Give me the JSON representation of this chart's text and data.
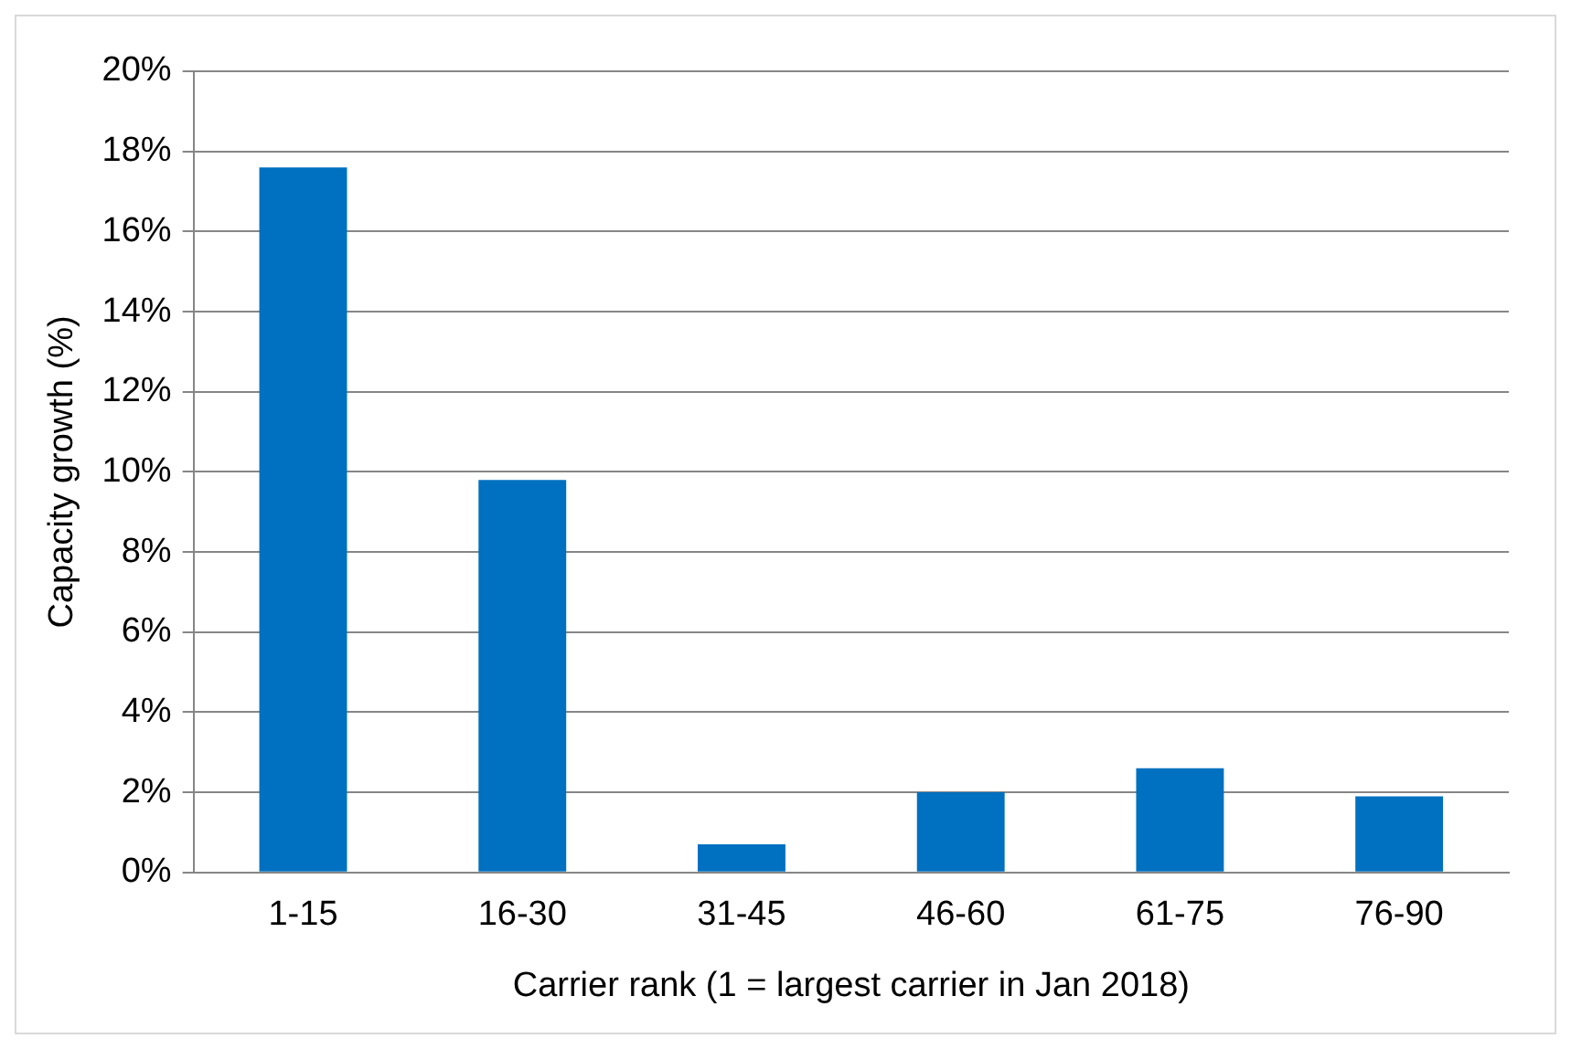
{
  "chart_data": {
    "type": "bar",
    "xlabel": "Carrier rank (1 = largest carrier in Jan 2018)",
    "ylabel": "Capacity growth (%)",
    "categories": [
      "1-15",
      "16-30",
      "31-45",
      "46-60",
      "61-75",
      "76-90"
    ],
    "values": [
      17.6,
      9.8,
      0.7,
      2.0,
      2.6,
      1.9
    ],
    "color": "#0070c0",
    "ylim": [
      0,
      20
    ],
    "yticks": [
      {
        "value": 0,
        "label": "0%"
      },
      {
        "value": 2,
        "label": "2%"
      },
      {
        "value": 4,
        "label": "4%"
      },
      {
        "value": 6,
        "label": "6%"
      },
      {
        "value": 8,
        "label": "8%"
      },
      {
        "value": 10,
        "label": "10%"
      },
      {
        "value": 12,
        "label": "12%"
      },
      {
        "value": 14,
        "label": "14%"
      },
      {
        "value": 16,
        "label": "16%"
      },
      {
        "value": 18,
        "label": "18%"
      },
      {
        "value": 20,
        "label": "20%"
      }
    ],
    "grid": "y",
    "legend": false
  }
}
